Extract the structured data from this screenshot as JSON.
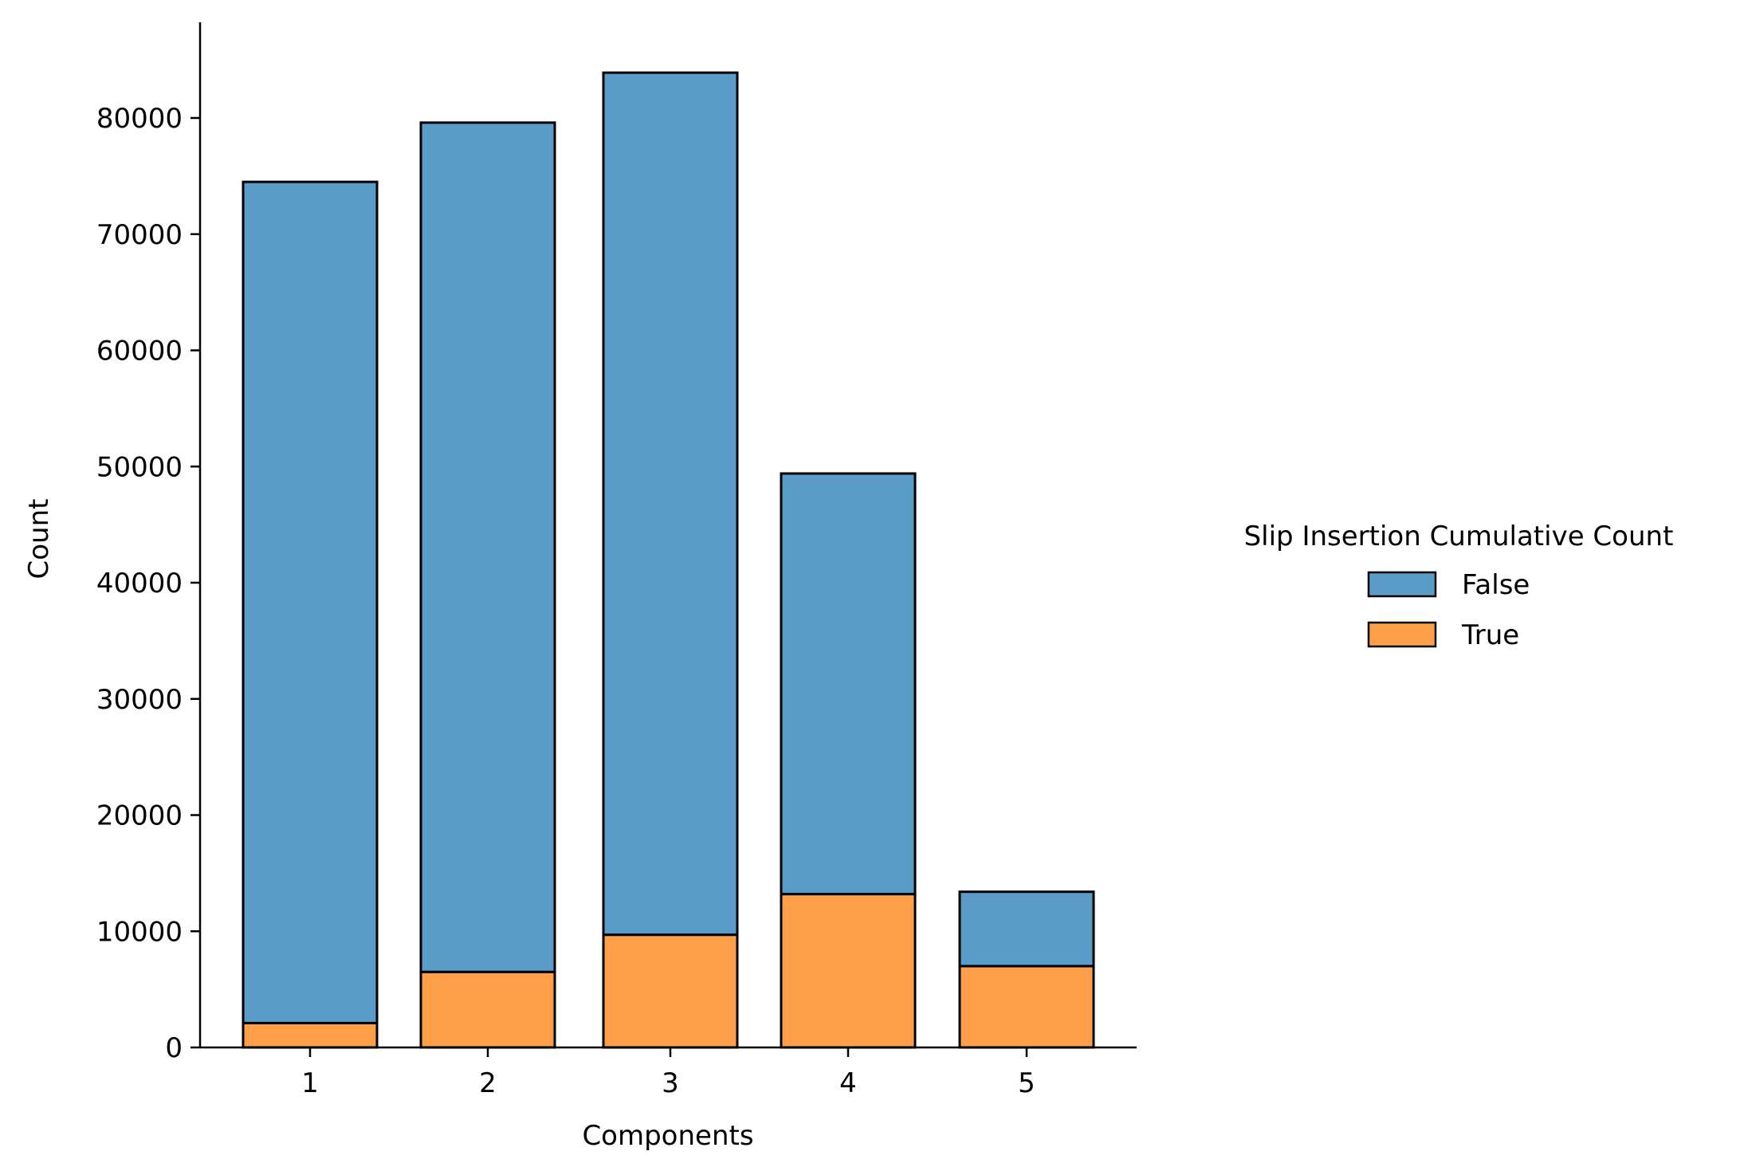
{
  "chart_data": {
    "type": "bar",
    "stacked": true,
    "categories": [
      "1",
      "2",
      "3",
      "4",
      "5"
    ],
    "series": [
      {
        "name": "True",
        "color": "#ff9f4a",
        "values": [
          2100,
          6500,
          9700,
          13200,
          7000
        ]
      },
      {
        "name": "False",
        "color": "#5a9bc7",
        "values": [
          72400,
          73100,
          74200,
          36200,
          6400
        ]
      }
    ],
    "totals": [
      74500,
      79600,
      83900,
      49400,
      13400
    ],
    "xlabel": "Components",
    "ylabel": "Count",
    "ylim": [
      0,
      88000
    ],
    "yticks": [
      0,
      10000,
      20000,
      30000,
      40000,
      50000,
      60000,
      70000,
      80000
    ],
    "ytick_labels": [
      "0",
      "10000",
      "20000",
      "30000",
      "40000",
      "50000",
      "60000",
      "70000",
      "80000"
    ],
    "grid": false,
    "legend": {
      "title": "Slip Insertion Cumulative Count",
      "placement": "right",
      "entries": [
        {
          "label": "False",
          "color": "#5a9bc7"
        },
        {
          "label": "True",
          "color": "#ff9f4a"
        }
      ]
    }
  }
}
